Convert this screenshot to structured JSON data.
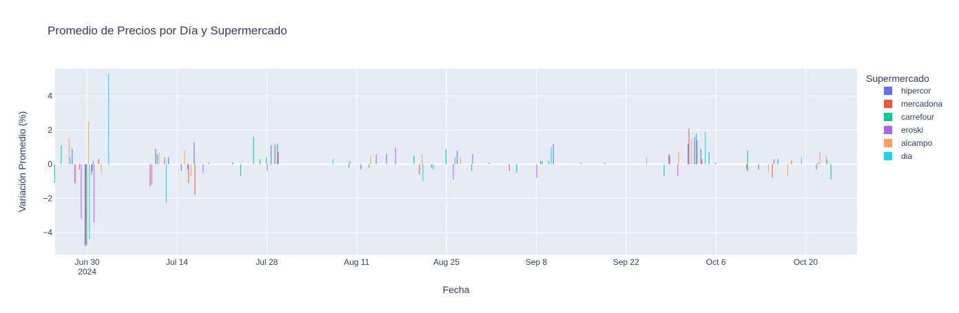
{
  "chart_data": {
    "type": "bar",
    "title": "Promedio de Precios por Día y Supermercado",
    "xlabel": "Fecha",
    "ylabel": "Variación Promedio (%)",
    "legend_title": "Supermercado",
    "legend_placement": "right",
    "barmode": "group",
    "grid": true,
    "xlim": [
      "2024-06-25",
      "2024-10-28"
    ],
    "ylim": [
      -5.3,
      5.6
    ],
    "y_ticks": [
      -4,
      -2,
      0,
      2,
      4
    ],
    "x_ticks": [
      {
        "date": "2024-06-30",
        "label": "Jun 30",
        "sublabel": "2024"
      },
      {
        "date": "2024-07-14",
        "label": "Jul 14",
        "sublabel": ""
      },
      {
        "date": "2024-07-28",
        "label": "Jul 28",
        "sublabel": ""
      },
      {
        "date": "2024-08-11",
        "label": "Aug 11",
        "sublabel": ""
      },
      {
        "date": "2024-08-25",
        "label": "Aug 25",
        "sublabel": ""
      },
      {
        "date": "2024-09-08",
        "label": "Sep 8",
        "sublabel": ""
      },
      {
        "date": "2024-09-22",
        "label": "Sep 22",
        "sublabel": ""
      },
      {
        "date": "2024-10-06",
        "label": "Oct 6",
        "sublabel": ""
      },
      {
        "date": "2024-10-20",
        "label": "Oct 20",
        "sublabel": ""
      }
    ],
    "series": [
      {
        "name": "hipercor",
        "color": "#636efa",
        "points": [
          [
            "2024-06-28",
            0.9
          ],
          [
            "2024-06-30",
            -4.8
          ],
          [
            "2024-07-01",
            -0.6
          ],
          [
            "2024-07-11",
            0.9
          ],
          [
            "2024-07-13",
            0.4
          ],
          [
            "2024-07-15",
            -0.4
          ],
          [
            "2024-07-16",
            -0.3
          ],
          [
            "2024-07-17",
            1.3
          ],
          [
            "2024-07-23",
            0.1
          ],
          [
            "2024-07-29",
            1.1
          ],
          [
            "2024-07-30",
            1.2
          ],
          [
            "2024-08-12",
            -0.3
          ],
          [
            "2024-08-16",
            0.6
          ],
          [
            "2024-08-23",
            -0.2
          ],
          [
            "2024-08-27",
            0.8
          ],
          [
            "2024-09-01",
            0.1
          ],
          [
            "2024-09-09",
            0.2
          ],
          [
            "2024-09-11",
            1.2
          ],
          [
            "2024-09-19",
            0.1
          ],
          [
            "2024-09-29",
            0.6
          ],
          [
            "2024-10-02",
            1.2
          ],
          [
            "2024-10-03",
            1.6
          ],
          [
            "2024-10-04",
            0.9
          ],
          [
            "2024-10-13",
            -0.3
          ],
          [
            "2024-10-16",
            0.3
          ],
          [
            "2024-10-22",
            -0.3
          ]
        ]
      },
      {
        "name": "mercadona",
        "color": "#ef553b",
        "points": [
          [
            "2024-06-29",
            -0.3
          ],
          [
            "2024-06-30",
            -4.7
          ],
          [
            "2024-07-01",
            -0.4
          ],
          [
            "2024-07-02",
            0.3
          ],
          [
            "2024-07-10",
            -1.3
          ],
          [
            "2024-07-16",
            -1.1
          ],
          [
            "2024-07-17",
            -1.8
          ],
          [
            "2024-07-30",
            0.7
          ],
          [
            "2024-08-10",
            -0.2
          ],
          [
            "2024-08-21",
            -0.6
          ],
          [
            "2024-09-04",
            -0.4
          ],
          [
            "2024-09-29",
            0.5
          ],
          [
            "2024-10-02",
            2.1
          ],
          [
            "2024-10-04",
            0.3
          ],
          [
            "2024-10-11",
            -0.3
          ],
          [
            "2024-10-15",
            -0.8
          ],
          [
            "2024-10-18",
            0.2
          ]
        ]
      },
      {
        "name": "carrefour",
        "color": "#00cc96",
        "points": [
          [
            "2024-06-25",
            -1.1
          ],
          [
            "2024-06-26",
            1.1
          ],
          [
            "2024-06-30",
            -4.8
          ],
          [
            "2024-07-01",
            0.2
          ],
          [
            "2024-07-11",
            0.6
          ],
          [
            "2024-07-19",
            0.1
          ],
          [
            "2024-07-24",
            -0.7
          ],
          [
            "2024-07-26",
            1.6
          ],
          [
            "2024-07-27",
            0.3
          ],
          [
            "2024-07-28",
            0.4
          ],
          [
            "2024-08-10",
            0.2
          ],
          [
            "2024-08-13",
            -0.2
          ],
          [
            "2024-08-20",
            0.5
          ],
          [
            "2024-08-23",
            -0.3
          ],
          [
            "2024-08-25",
            0.9
          ],
          [
            "2024-08-29",
            -0.4
          ],
          [
            "2024-09-05",
            -0.5
          ],
          [
            "2024-09-09",
            0.2
          ],
          [
            "2024-09-10",
            0.2
          ],
          [
            "2024-09-15",
            0.1
          ],
          [
            "2024-09-28",
            -0.7
          ],
          [
            "2024-10-03",
            1.8
          ],
          [
            "2024-10-05",
            0.7
          ],
          [
            "2024-10-06",
            0.1
          ],
          [
            "2024-10-11",
            -0.4
          ],
          [
            "2024-10-11",
            0.8
          ],
          [
            "2024-10-22",
            0.1
          ],
          [
            "2024-10-24",
            -0.9
          ]
        ]
      },
      {
        "name": "eroski",
        "color": "#ab63fa",
        "points": [
          [
            "2024-06-28",
            -1.1
          ],
          [
            "2024-06-29",
            -3.2
          ],
          [
            "2024-07-01",
            -3.4
          ],
          [
            "2024-07-10",
            -1.2
          ],
          [
            "2024-07-12",
            0.4
          ],
          [
            "2024-07-18",
            -0.5
          ],
          [
            "2024-07-28",
            -0.4
          ],
          [
            "2024-08-14",
            0.6
          ],
          [
            "2024-08-17",
            1.0
          ],
          [
            "2024-08-26",
            -0.9
          ],
          [
            "2024-08-29",
            0.6
          ],
          [
            "2024-09-08",
            -0.8
          ],
          [
            "2024-09-30",
            -0.7
          ],
          [
            "2024-10-03",
            1.4
          ],
          [
            "2024-10-15",
            0.3
          ]
        ]
      },
      {
        "name": "alcampo",
        "color": "#ffa15a",
        "points": [
          [
            "2024-06-27",
            1.5
          ],
          [
            "2024-06-28",
            -1.2
          ],
          [
            "2024-06-30",
            2.5
          ],
          [
            "2024-07-02",
            -0.5
          ],
          [
            "2024-07-11",
            0.7
          ],
          [
            "2024-07-15",
            0.8
          ],
          [
            "2024-07-16",
            -0.7
          ],
          [
            "2024-07-29",
            1.2
          ],
          [
            "2024-08-13",
            0.5
          ],
          [
            "2024-08-21",
            0.6
          ],
          [
            "2024-08-27",
            0.4
          ],
          [
            "2024-09-25",
            0.4
          ],
          [
            "2024-09-30",
            0.7
          ],
          [
            "2024-10-02",
            1.5
          ],
          [
            "2024-10-17",
            -0.7
          ],
          [
            "2024-10-22",
            0.7
          ],
          [
            "2024-10-23",
            0.5
          ],
          [
            "2024-10-14",
            -0.5
          ]
        ]
      },
      {
        "name": "dia",
        "color": "#19d3f3",
        "points": [
          [
            "2024-06-27",
            0.4
          ],
          [
            "2024-06-30",
            -4.4
          ],
          [
            "2024-07-03",
            5.3
          ],
          [
            "2024-07-12",
            -2.3
          ],
          [
            "2024-07-29",
            1.1
          ],
          [
            "2024-08-07",
            0.3
          ],
          [
            "2024-08-21",
            -1.0
          ],
          [
            "2024-08-26",
            0.4
          ],
          [
            "2024-09-10",
            1.0
          ],
          [
            "2024-10-04",
            1.9
          ],
          [
            "2024-10-19",
            0.4
          ],
          [
            "2024-10-23",
            0.3
          ]
        ]
      }
    ]
  }
}
